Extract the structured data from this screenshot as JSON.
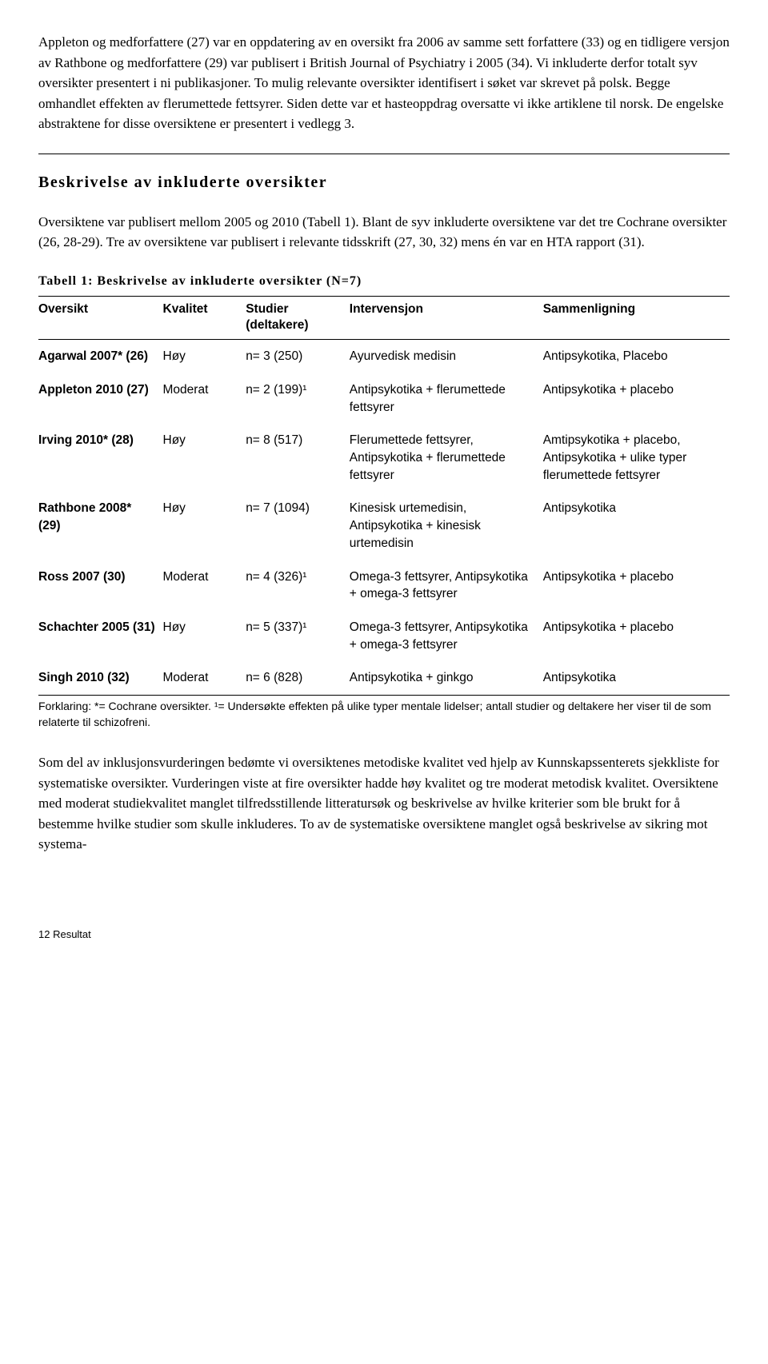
{
  "paragraph1": "Appleton og medforfattere (27) var en oppdatering av en oversikt fra 2006 av samme sett forfattere (33) og en tidligere versjon av Rathbone og medforfattere (29) var publisert i British Journal of Psychiatry i 2005 (34). Vi inkluderte derfor totalt syv oversikter presentert i ni publikasjoner. To mulig relevante oversikter identifisert i søket var skrevet på polsk. Begge omhandlet effekten av flerumettede fettsyrer. Siden dette var et hasteoppdrag oversatte vi ikke artiklene til norsk. De engelske abstraktene for disse oversiktene er presentert i vedlegg 3.",
  "section_title": "Beskrivelse av inkluderte oversikter",
  "paragraph2": "Oversiktene var publisert mellom 2005 og 2010 (Tabell 1). Blant de syv inkluderte oversiktene var det tre Cochrane oversikter (26, 28-29). Tre av oversiktene var publisert i relevante tidsskrift (27, 30, 32) mens én var en HTA rapport (31).",
  "table_caption": "Tabell 1: Beskrivelse av inkluderte oversikter (N=7)",
  "headers": {
    "oversikt": "Oversikt",
    "kvalitet": "Kvalitet",
    "studier": "Studier (deltakere)",
    "intervensjon": "Intervensjon",
    "sammenligning": "Sammenligning"
  },
  "rows": [
    {
      "oversikt": "Agarwal 2007* (26)",
      "kvalitet": "Høy",
      "studier": "n= 3 (250)",
      "intervensjon": "Ayurvedisk medisin",
      "sammenligning": "Antipsykotika, Placebo"
    },
    {
      "oversikt": "Appleton 2010 (27)",
      "kvalitet": "Moderat",
      "studier": "n= 2 (199)¹",
      "intervensjon": "Antipsykotika + flerumettede fettsyrer",
      "sammenligning": "Antipsykotika + placebo"
    },
    {
      "oversikt": "Irving 2010* (28)",
      "kvalitet": "Høy",
      "studier": "n= 8 (517)",
      "intervensjon": "Flerumettede fettsyrer, Antipsykotika + flerumettede fettsyrer",
      "sammenligning": "Amtipsykotika + placebo, Antipsykotika + ulike typer flerumettede fettsyrer"
    },
    {
      "oversikt": "Rathbone 2008* (29)",
      "kvalitet": "Høy",
      "studier": "n= 7 (1094)",
      "intervensjon": "Kinesisk urtemedisin, Antipsykotika + kinesisk urtemedisin",
      "sammenligning": "Antipsykotika"
    },
    {
      "oversikt": "Ross 2007 (30)",
      "kvalitet": "Moderat",
      "studier": "n= 4 (326)¹",
      "intervensjon": "Omega-3 fettsyrer, Antipsykotika + omega-3 fettsyrer",
      "sammenligning": "Antipsykotika + placebo"
    },
    {
      "oversikt": "Schachter 2005 (31)",
      "kvalitet": "Høy",
      "studier": "n= 5 (337)¹",
      "intervensjon": "Omega-3 fettsyrer, Antipsykotika + omega-3 fettsyrer",
      "sammenligning": "Antipsykotika + placebo"
    },
    {
      "oversikt": "Singh 2010 (32)",
      "kvalitet": "Moderat",
      "studier": "n= 6 (828)",
      "intervensjon": "Antipsykotika + ginkgo",
      "sammenligning": "Antipsykotika"
    }
  ],
  "table_footnote": "Forklaring: *= Cochrane oversikter. ¹= Undersøkte effekten på ulike typer mentale lidelser; antall studier og deltakere her viser til de som relaterte til schizofreni.",
  "paragraph3": "Som del av inklusjonsvurderingen bedømte vi oversiktenes metodiske kvalitet ved hjelp av Kunnskapssenterets sjekkliste for systematiske oversikter. Vurderingen viste at fire oversikter hadde høy kvalitet og tre moderat metodisk kvalitet. Oversiktene med moderat studiekvalitet manglet tilfredsstillende litteratursøk og beskrivelse av hvilke kriterier som ble brukt for å bestemme hvilke studier som skulle inkluderes. To av de systematiske oversiktene manglet også beskrivelse av sikring mot systema-",
  "footer": "12  Resultat"
}
